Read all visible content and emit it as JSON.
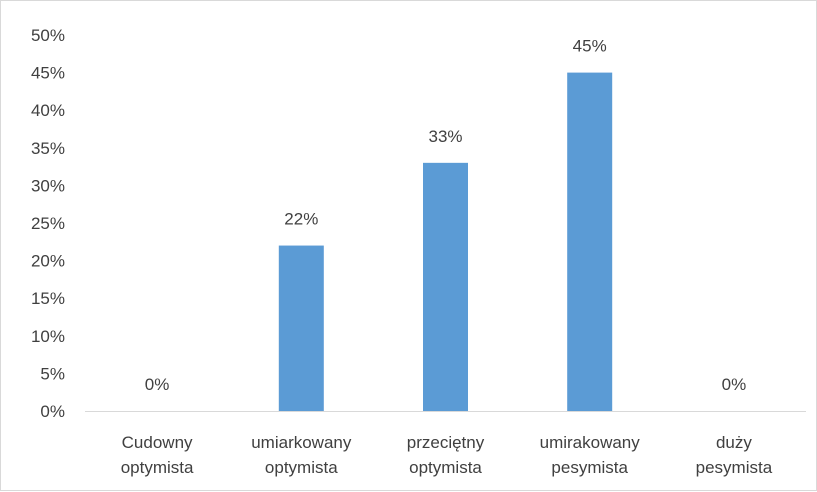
{
  "chart_data": {
    "type": "bar",
    "categories": [
      [
        "Cudowny",
        "optymista"
      ],
      [
        "umiarkowany",
        "optymista"
      ],
      [
        "przeciętny",
        "optymista"
      ],
      [
        "umirakowany",
        "pesymista"
      ],
      [
        "duży",
        "pesymista"
      ]
    ],
    "values": [
      0,
      22,
      33,
      45,
      0
    ],
    "data_labels": [
      "0%",
      "22%",
      "33%",
      "45%",
      "0%"
    ],
    "y_ticks": [
      "0%",
      "5%",
      "10%",
      "15%",
      "20%",
      "25%",
      "30%",
      "35%",
      "40%",
      "45%",
      "50%"
    ],
    "ylim": [
      0,
      50
    ],
    "title": "",
    "xlabel": "",
    "ylabel": "",
    "grid": false,
    "legend": "none",
    "bar_color": "#5b9bd5",
    "axis_color": "#d9d9d9",
    "text_color": "#404040"
  }
}
